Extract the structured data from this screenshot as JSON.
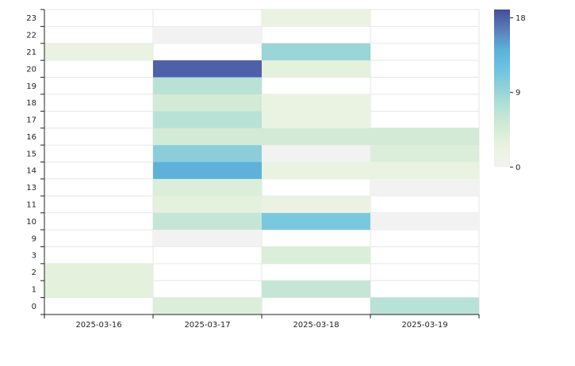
{
  "chart_data": {
    "type": "heatmap",
    "title": "",
    "xlabel": "",
    "ylabel": "",
    "x_categories": [
      "2025-03-16",
      "2025-03-17",
      "2025-03-18",
      "2025-03-19"
    ],
    "y_categories": [
      "0",
      "1",
      "2",
      "3",
      "9",
      "10",
      "11",
      "13",
      "14",
      "15",
      "16",
      "17",
      "18",
      "19",
      "20",
      "21",
      "22",
      "23"
    ],
    "cells": [
      {
        "x": "2025-03-16",
        "y": "1",
        "value": 3
      },
      {
        "x": "2025-03-16",
        "y": "2",
        "value": 3
      },
      {
        "x": "2025-03-16",
        "y": "21",
        "value": 2
      },
      {
        "x": "2025-03-17",
        "y": "0",
        "value": 4
      },
      {
        "x": "2025-03-17",
        "y": "9",
        "value": 0
      },
      {
        "x": "2025-03-17",
        "y": "10",
        "value": 6
      },
      {
        "x": "2025-03-17",
        "y": "11",
        "value": 3
      },
      {
        "x": "2025-03-17",
        "y": "13",
        "value": 4
      },
      {
        "x": "2025-03-17",
        "y": "14",
        "value": 14
      },
      {
        "x": "2025-03-17",
        "y": "15",
        "value": 10
      },
      {
        "x": "2025-03-17",
        "y": "16",
        "value": 5
      },
      {
        "x": "2025-03-17",
        "y": "17",
        "value": 7
      },
      {
        "x": "2025-03-17",
        "y": "18",
        "value": 5
      },
      {
        "x": "2025-03-17",
        "y": "19",
        "value": 7
      },
      {
        "x": "2025-03-17",
        "y": "20",
        "value": 18
      },
      {
        "x": "2025-03-17",
        "y": "22",
        "value": 0
      },
      {
        "x": "2025-03-18",
        "y": "1",
        "value": 6
      },
      {
        "x": "2025-03-18",
        "y": "3",
        "value": 4
      },
      {
        "x": "2025-03-18",
        "y": "10",
        "value": 11
      },
      {
        "x": "2025-03-18",
        "y": "11",
        "value": 2
      },
      {
        "x": "2025-03-18",
        "y": "14",
        "value": 2
      },
      {
        "x": "2025-03-18",
        "y": "15",
        "value": 0
      },
      {
        "x": "2025-03-18",
        "y": "16",
        "value": 5
      },
      {
        "x": "2025-03-18",
        "y": "17",
        "value": 2
      },
      {
        "x": "2025-03-18",
        "y": "18",
        "value": 2
      },
      {
        "x": "2025-03-18",
        "y": "20",
        "value": 3
      },
      {
        "x": "2025-03-18",
        "y": "21",
        "value": 9
      },
      {
        "x": "2025-03-18",
        "y": "23",
        "value": 2
      },
      {
        "x": "2025-03-19",
        "y": "0",
        "value": 7
      },
      {
        "x": "2025-03-19",
        "y": "10",
        "value": 0
      },
      {
        "x": "2025-03-19",
        "y": "13",
        "value": 0
      },
      {
        "x": "2025-03-19",
        "y": "14",
        "value": 2
      },
      {
        "x": "2025-03-19",
        "y": "15",
        "value": 4
      },
      {
        "x": "2025-03-19",
        "y": "16",
        "value": 5
      }
    ],
    "color_scale": {
      "min": 0,
      "max": 19,
      "ticks": [
        0,
        9,
        18
      ],
      "stops": [
        "#f2f2f2",
        "#e9f3df",
        "#d5ebd6",
        "#b6e2d6",
        "#93d1d8",
        "#6cc3e0",
        "#5cb0d8",
        "#5a7db8",
        "#454b9c"
      ]
    },
    "legend_position": "top-right",
    "grid": true
  }
}
